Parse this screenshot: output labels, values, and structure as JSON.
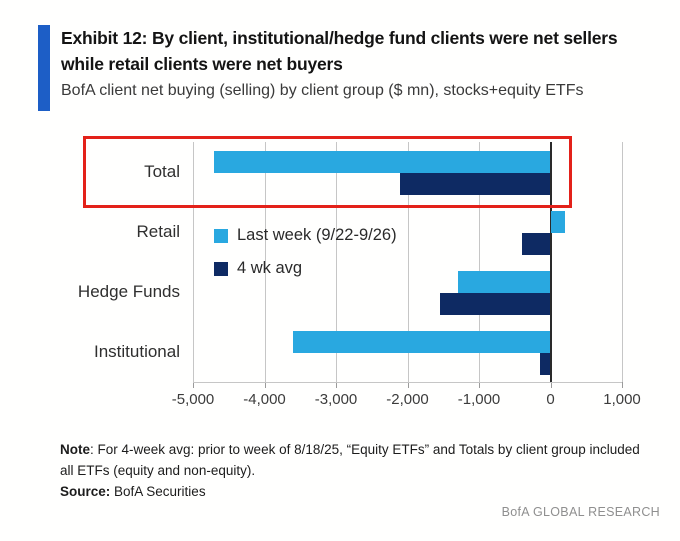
{
  "header": {
    "exhibit_title": "Exhibit 12: By client, institutional/hedge fund clients were net sellers while retail clients were net buyers",
    "subtitle": "BofA client net buying (selling) by client group ($ mn), stocks+equity ETFs",
    "accent_color": "#1d5ec6"
  },
  "chart_data": {
    "type": "bar",
    "orientation": "horizontal",
    "title": "BofA client net buying (selling) by client group ($ mn), stocks+equity ETFs",
    "categories": [
      "Total",
      "Retail",
      "Hedge Funds",
      "Institutional"
    ],
    "series": [
      {
        "name": "Last week (9/22-9/26)",
        "color": "#29a8e0",
        "values": [
          -4700,
          200,
          -1300,
          -3600
        ]
      },
      {
        "name": "4 wk avg",
        "color": "#0e2a63",
        "values": [
          -2100,
          -400,
          -1550,
          -150
        ]
      }
    ],
    "xlim": [
      -5000,
      1000
    ],
    "x_ticks": [
      -5000,
      -4000,
      -3000,
      -2000,
      -1000,
      0,
      1000
    ],
    "x_tick_labels": [
      "-5,000",
      "-4,000",
      "-3,000",
      "-2,000",
      "-1,000",
      "0",
      "1,000"
    ],
    "grid": true,
    "legend_position": "inside-top-left",
    "highlight": {
      "category": "Total",
      "color": "#e32119"
    }
  },
  "footer": {
    "note_label": "Note",
    "note_text": ": For 4-week avg: prior to week of 8/18/25, “Equity ETFs” and Totals by client group included all ETFs (equity and non-equity).",
    "source_label": "Source:",
    "source_text": " BofA Securities",
    "brand": "BofA GLOBAL RESEARCH"
  }
}
